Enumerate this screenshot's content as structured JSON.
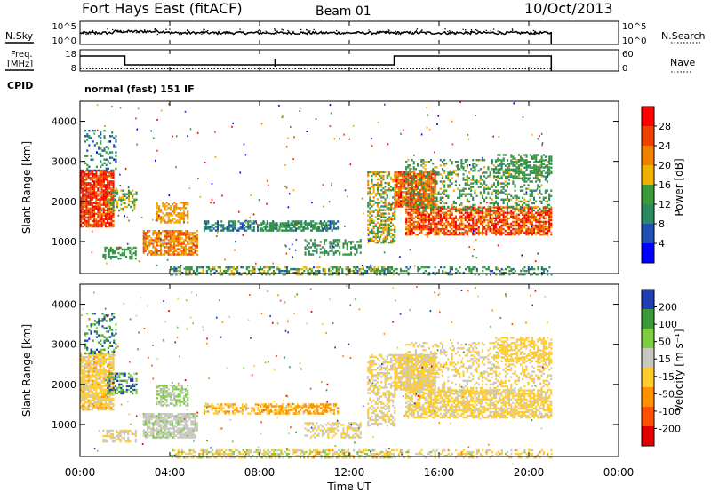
{
  "header": {
    "station": "Fort Hays East (fitACF)",
    "beam": "Beam 01",
    "date": "10/Oct/2013"
  },
  "side_labels": {
    "nsky": "N.Sky",
    "nsearch": "N.Search",
    "freq_line1": "Freq.",
    "freq_line2": "[MHz]",
    "nave": "Nave",
    "cpid": "CPID"
  },
  "cpid_text": "normal (fast) 151 IF",
  "colors": {
    "power_scale": [
      "#0000ff",
      "#1f4fb0",
      "#2c8a60",
      "#3a9a3a",
      "#f0b000",
      "#f08000",
      "#f04000",
      "#ff0000"
    ],
    "velocity_scale": [
      "#e00000",
      "#ff5000",
      "#ff9000",
      "#ffcc30",
      "#c8c8c0",
      "#7ccc40",
      "#3a9a3a",
      "#1f3fb0"
    ]
  },
  "chart_data": [
    {
      "type": "line",
      "name": "nsky-nsearch",
      "y_left_ticks": [
        "10^5",
        "10^0"
      ],
      "y_right_ticks": [
        "10^5",
        "10^0"
      ],
      "xlim": [
        0,
        24
      ]
    },
    {
      "type": "line",
      "name": "freq-nave",
      "ylabel_left": "Freq. [MHz]",
      "y_left_ticks": [
        "18",
        "8"
      ],
      "y_right_ticks": [
        "60",
        "0"
      ],
      "freq_steps": [
        {
          "x0": 0,
          "x1": 2,
          "y": 15.5
        },
        {
          "x0": 2,
          "x1": 14,
          "y": 10.5
        },
        {
          "x0": 14,
          "x1": 21,
          "y": 15.5
        }
      ],
      "xlim": [
        0,
        24
      ]
    },
    {
      "type": "heatmap",
      "name": "power",
      "ylabel": "Slant Range [km]",
      "yticks": [
        "1000",
        "2000",
        "3000",
        "4000"
      ],
      "ylim": [
        200,
        4500
      ],
      "xlim": [
        0,
        24
      ],
      "colorbar_label": "Power [dB]",
      "colorbar_ticks": [
        "28",
        "24",
        "20",
        "16",
        "12",
        "8",
        "4"
      ],
      "colorbar_range": [
        0,
        32
      ]
    },
    {
      "type": "heatmap",
      "name": "velocity",
      "ylabel": "Slant Range [km]",
      "yticks": [
        "1000",
        "2000",
        "3000",
        "4000"
      ],
      "ylim": [
        200,
        4500
      ],
      "xlim": [
        0,
        24
      ],
      "colorbar_label": "Velocity [m s⁻¹]",
      "colorbar_ticks": [
        "200",
        "100",
        "50",
        "15",
        "-15",
        "-50",
        "-100",
        "-200"
      ],
      "colorbar_range": [
        -250,
        250
      ]
    }
  ],
  "xaxis": {
    "title": "Time UT",
    "ticks": [
      "00:00",
      "04:00",
      "08:00",
      "12:00",
      "16:00",
      "20:00",
      "00:00"
    ]
  }
}
